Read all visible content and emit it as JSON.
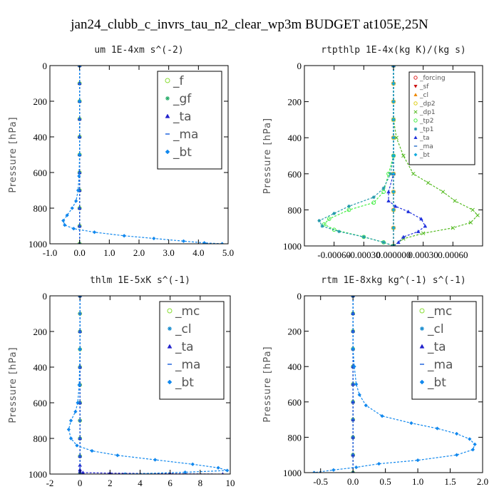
{
  "suptitle": "jan24_clubb_c_invrs_tau_n2_clear_wp3m  BUDGET at105E,25N",
  "chart_data": [
    {
      "id": "um",
      "type": "line",
      "title": "um  1E-4xm s^(-2)",
      "ylabel": "Pressure [hPa]",
      "xlim": [
        -1.0,
        5.0
      ],
      "ylim": [
        1000,
        0
      ],
      "xticks": [
        -1.0,
        0.0,
        1.0,
        2.0,
        3.0,
        4.0,
        5.0
      ],
      "xtick_labels": [
        "-1.0",
        "0.0",
        "1.0",
        "2.0",
        "3.0",
        "4.0",
        "5.0"
      ],
      "yticks": [
        0,
        200,
        400,
        600,
        800,
        1000
      ],
      "ytick_labels": [
        "0",
        "200",
        "400",
        "600",
        "800",
        "1000"
      ],
      "legend_position": "top-right",
      "legend_size": "large",
      "series": [
        {
          "name": "_f",
          "color": "#88dd33",
          "marker": "circle",
          "x": [
            0,
            0,
            0,
            0,
            0,
            0,
            0,
            0,
            0,
            0,
            0
          ],
          "y": [
            0,
            100,
            200,
            300,
            400,
            500,
            600,
            700,
            800,
            900,
            1000
          ]
        },
        {
          "name": "_gf",
          "color": "#22aa66",
          "marker": "star",
          "x": [
            0,
            0,
            0,
            0,
            0,
            0,
            0,
            0,
            0,
            0,
            0
          ],
          "y": [
            0,
            100,
            200,
            300,
            400,
            500,
            600,
            700,
            800,
            900,
            1000
          ]
        },
        {
          "name": "_ta",
          "color": "#2222cc",
          "marker": "triangle",
          "x": [
            0,
            0,
            0,
            0,
            0,
            0,
            0,
            0,
            0,
            0,
            0
          ],
          "y": [
            0,
            100,
            200,
            300,
            400,
            500,
            600,
            700,
            800,
            900,
            1000
          ]
        },
        {
          "name": "_ma",
          "color": "#2266dd",
          "marker": "dash",
          "x": [
            0,
            0,
            0,
            0,
            0,
            0,
            0,
            0,
            0,
            0,
            0
          ],
          "y": [
            0,
            100,
            200,
            300,
            400,
            500,
            600,
            700,
            800,
            900,
            1000
          ]
        },
        {
          "name": "_bt",
          "color": "#1188ee",
          "marker": "diamond",
          "x": [
            0,
            0,
            0,
            -0.02,
            -0.05,
            -0.12,
            -0.25,
            -0.42,
            -0.55,
            -0.5,
            -0.2,
            0.5,
            1.5,
            2.5,
            3.5,
            4.2,
            4.8
          ],
          "y": [
            0,
            200,
            500,
            620,
            700,
            760,
            800,
            840,
            870,
            895,
            915,
            935,
            955,
            970,
            985,
            995,
            1000
          ]
        }
      ]
    },
    {
      "id": "rtpthlp",
      "type": "line",
      "title": "rtpthlp  1E-4x(kg K)/(kg s)",
      "ylabel": "Pressure [hPa]",
      "xlim": [
        -0.0009,
        0.0009
      ],
      "ylim": [
        1000,
        0
      ],
      "xticks": [
        -0.0006,
        -0.0003,
        0.0,
        0.0003,
        0.0006
      ],
      "xtick_labels": [
        "-0.00060",
        "-0.00030",
        "0.000000",
        "0.00030",
        "0.00060"
      ],
      "yticks": [
        0,
        200,
        400,
        600,
        800,
        1000
      ],
      "ytick_labels": [
        "0",
        "200",
        "400",
        "600",
        "800",
        "1000"
      ],
      "legend_position": "top-right",
      "legend_size": "small",
      "series": [
        {
          "name": "_forcing",
          "color": "#dd2222",
          "marker": "circle",
          "x": [
            0,
            0,
            0,
            0,
            0,
            0,
            0,
            0,
            0,
            0,
            0
          ],
          "y": [
            0,
            100,
            200,
            300,
            400,
            500,
            600,
            700,
            800,
            900,
            1000
          ]
        },
        {
          "name": "_sf",
          "color": "#cc1111",
          "marker": "triangle-down",
          "x": [
            0,
            0,
            0,
            0,
            0,
            0,
            0,
            0,
            0,
            0,
            0
          ],
          "y": [
            0,
            100,
            200,
            300,
            400,
            500,
            600,
            700,
            800,
            900,
            1000
          ]
        },
        {
          "name": "_cl",
          "color": "#ee8800",
          "marker": "triangle",
          "x": [
            0,
            0,
            0,
            0,
            0,
            0,
            0,
            0,
            0,
            0,
            0
          ],
          "y": [
            0,
            100,
            200,
            300,
            400,
            500,
            600,
            700,
            800,
            900,
            1000
          ]
        },
        {
          "name": "_dp2",
          "color": "#ddcc11",
          "marker": "circle",
          "x": [
            0,
            0,
            0,
            0,
            0,
            0,
            0,
            0,
            0,
            0,
            0
          ],
          "y": [
            0,
            100,
            200,
            300,
            400,
            500,
            600,
            700,
            800,
            900,
            1000
          ]
        },
        {
          "name": "_dp1",
          "color": "#55bb22",
          "marker": "cross",
          "x": [
            0,
            0,
            3e-05,
            0.0001,
            0.0002,
            0.00035,
            0.0005,
            0.00062,
            0.0008,
            0.00085,
            0.00078,
            0.0006,
            0.0003,
            0.0001,
            0
          ],
          "y": [
            0,
            300,
            400,
            500,
            600,
            650,
            700,
            750,
            800,
            830,
            870,
            900,
            930,
            960,
            1000
          ]
        },
        {
          "name": "_tp2",
          "color": "#44ee44",
          "marker": "circle",
          "x": [
            0,
            0,
            -5e-05,
            -0.0001,
            -0.0002,
            -0.00045,
            -0.00065,
            -0.0007,
            -0.0006,
            -0.0003,
            -0.0001,
            0
          ],
          "y": [
            0,
            500,
            600,
            700,
            760,
            800,
            850,
            880,
            910,
            950,
            980,
            1000
          ]
        },
        {
          "name": "_tp1",
          "color": "#2299aa",
          "marker": "star",
          "x": [
            0,
            0,
            -3e-05,
            -0.0001,
            -0.0002,
            -0.00045,
            -0.0006,
            -0.00075,
            -0.00072,
            -0.00055,
            -0.0003,
            -0.0001,
            0
          ],
          "y": [
            0,
            500,
            600,
            680,
            730,
            780,
            820,
            860,
            890,
            920,
            950,
            980,
            1000
          ]
        },
        {
          "name": "_ta",
          "color": "#2233dd",
          "marker": "triangle",
          "x": [
            0,
            0,
            -5e-05,
            -5e-05,
            2e-05,
            0.00015,
            0.00028,
            0.00032,
            0.00025,
            0.0001,
            5e-05,
            0
          ],
          "y": [
            0,
            600,
            700,
            750,
            780,
            810,
            850,
            890,
            920,
            950,
            980,
            1000
          ]
        },
        {
          "name": "_ma",
          "color": "#3377cc",
          "marker": "dash",
          "x": [
            0,
            0,
            0,
            0,
            0,
            0,
            0,
            0,
            0,
            0,
            0
          ],
          "y": [
            0,
            100,
            200,
            300,
            400,
            500,
            600,
            700,
            800,
            900,
            1000
          ]
        },
        {
          "name": "_bt",
          "color": "#11aadd",
          "marker": "diamond",
          "x": [
            0,
            0,
            0,
            0,
            0,
            0,
            0,
            0,
            0,
            0,
            0
          ],
          "y": [
            0,
            100,
            200,
            300,
            400,
            500,
            600,
            700,
            800,
            900,
            1000
          ]
        }
      ]
    },
    {
      "id": "thlm",
      "type": "line",
      "title": "thlm  1E-5xK s^(-1)",
      "ylabel": "Pressure [hPa]",
      "xlim": [
        -2,
        10
      ],
      "ylim": [
        1000,
        0
      ],
      "xticks": [
        -2,
        0,
        2,
        4,
        6,
        8,
        10
      ],
      "xtick_labels": [
        "-2",
        "0",
        "2",
        "4",
        "6",
        "8",
        "10"
      ],
      "yticks": [
        0,
        200,
        400,
        600,
        800,
        1000
      ],
      "ytick_labels": [
        "0",
        "200",
        "400",
        "600",
        "800",
        "1000"
      ],
      "legend_position": "top-right",
      "legend_size": "large",
      "series": [
        {
          "name": "_mc",
          "color": "#88dd33",
          "marker": "circle",
          "x": [
            0,
            0,
            0,
            0,
            0,
            0,
            0,
            0,
            0,
            0,
            0
          ],
          "y": [
            0,
            100,
            200,
            300,
            400,
            500,
            600,
            700,
            800,
            900,
            1000
          ]
        },
        {
          "name": "_cl",
          "color": "#1188cc",
          "marker": "star",
          "x": [
            0,
            0,
            0,
            0,
            0,
            0,
            0,
            0,
            0,
            0,
            0
          ],
          "y": [
            0,
            100,
            200,
            300,
            400,
            500,
            600,
            700,
            800,
            900,
            1000
          ]
        },
        {
          "name": "_ta",
          "color": "#2222cc",
          "marker": "triangle",
          "x": [
            0,
            0,
            0,
            0,
            0,
            0,
            0,
            0,
            0,
            0.2,
            2.0,
            6.0,
            9.5
          ],
          "y": [
            0,
            200,
            400,
            600,
            800,
            900,
            950,
            975,
            985,
            992,
            995,
            998,
            1000
          ]
        },
        {
          "name": "_ma",
          "color": "#2266dd",
          "marker": "dash",
          "x": [
            0,
            0,
            0,
            0,
            0,
            0,
            0,
            0,
            0,
            0,
            0
          ],
          "y": [
            0,
            100,
            200,
            300,
            400,
            500,
            600,
            700,
            800,
            900,
            1000
          ]
        },
        {
          "name": "_bt",
          "color": "#1188ee",
          "marker": "diamond",
          "x": [
            0,
            0,
            -0.05,
            -0.15,
            -0.3,
            -0.6,
            -0.75,
            -0.6,
            -0.2,
            0.8,
            2.5,
            5.0,
            7.5,
            9.2,
            9.8,
            7.0,
            3.0
          ],
          "y": [
            0,
            300,
            500,
            600,
            650,
            700,
            750,
            800,
            840,
            870,
            895,
            920,
            945,
            965,
            980,
            990,
            1000
          ]
        }
      ]
    },
    {
      "id": "rtm",
      "type": "line",
      "title": "rtm  1E-8xkg kg^(-1) s^(-1)",
      "ylabel": "Pressure [hPa]",
      "xlim": [
        -0.75,
        2.0
      ],
      "ylim": [
        1000,
        0
      ],
      "xticks": [
        -0.5,
        0.0,
        0.5,
        1.0,
        1.5,
        2.0
      ],
      "xtick_labels": [
        "-0.5",
        "0.0",
        "0.5",
        "1.0",
        "1.5",
        "2.0"
      ],
      "yticks": [
        0,
        200,
        400,
        600,
        800,
        1000
      ],
      "ytick_labels": [
        "0",
        "200",
        "400",
        "600",
        "800",
        "1000"
      ],
      "legend_position": "top-right",
      "legend_size": "large",
      "series": [
        {
          "name": "_mc",
          "color": "#88dd33",
          "marker": "circle",
          "x": [
            0,
            0,
            0,
            0,
            0,
            0,
            0,
            0,
            0,
            0,
            0
          ],
          "y": [
            0,
            100,
            200,
            300,
            400,
            500,
            600,
            700,
            800,
            900,
            1000
          ]
        },
        {
          "name": "_cl",
          "color": "#1188cc",
          "marker": "star",
          "x": [
            0,
            0,
            0,
            0,
            0,
            0,
            0,
            0,
            0,
            0,
            0
          ],
          "y": [
            0,
            100,
            200,
            300,
            400,
            500,
            600,
            700,
            800,
            900,
            1000
          ]
        },
        {
          "name": "_ta",
          "color": "#2222cc",
          "marker": "triangle",
          "x": [
            0,
            0,
            0,
            0,
            0,
            0,
            0,
            0,
            0,
            0,
            0
          ],
          "y": [
            0,
            100,
            200,
            300,
            400,
            500,
            600,
            700,
            800,
            900,
            1000
          ]
        },
        {
          "name": "_ma",
          "color": "#2266dd",
          "marker": "dash",
          "x": [
            0,
            0,
            0,
            0,
            0,
            0,
            0,
            0,
            0,
            0,
            0
          ],
          "y": [
            0,
            100,
            200,
            300,
            400,
            500,
            600,
            700,
            800,
            900,
            1000
          ]
        },
        {
          "name": "_bt",
          "color": "#1188ee",
          "marker": "diamond",
          "x": [
            0,
            0,
            0.02,
            0.05,
            0.1,
            0.2,
            0.45,
            0.9,
            1.3,
            1.6,
            1.8,
            1.88,
            1.85,
            1.6,
            1.0,
            0.4,
            0.05,
            -0.3,
            -0.6
          ],
          "y": [
            0,
            300,
            400,
            500,
            560,
            620,
            680,
            720,
            750,
            780,
            810,
            840,
            870,
            900,
            930,
            950,
            970,
            985,
            1000
          ]
        }
      ]
    }
  ]
}
